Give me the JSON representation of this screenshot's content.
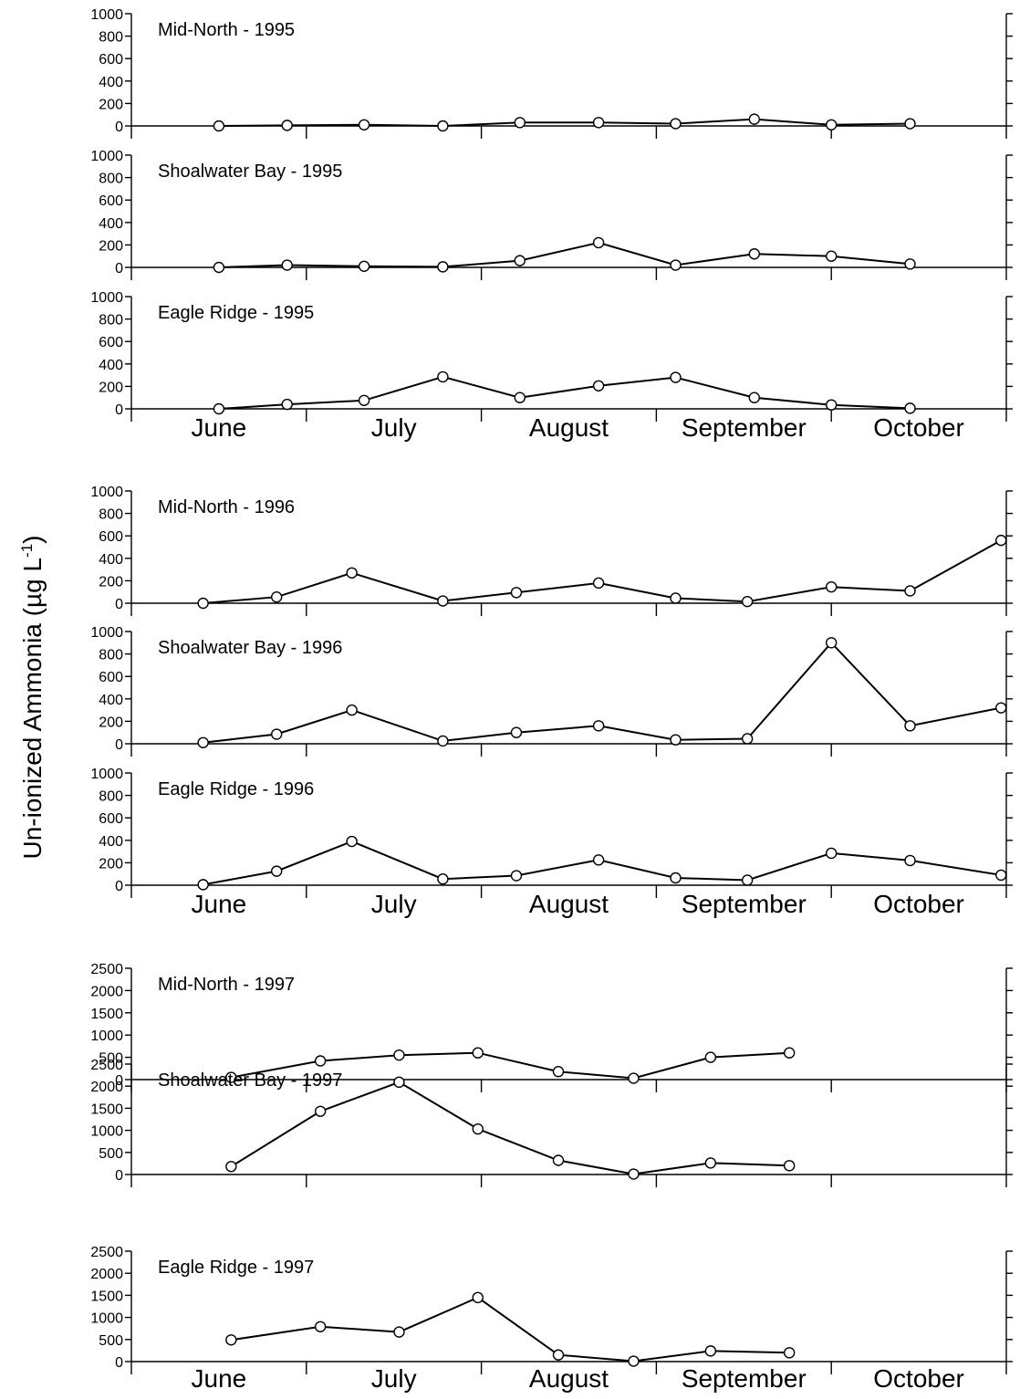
{
  "y_axis_label": {
    "main": "Un-ionized Ammonia (µg L",
    "exponent": "-1",
    "close": ")"
  },
  "chart_data": [
    {
      "type": "line",
      "year": "1995",
      "months": [
        "June",
        "July",
        "August",
        "September",
        "October"
      ],
      "x_unit": "month index (0 = start of June, 5 = end of October)",
      "xlim": [
        0,
        5
      ],
      "ylim": [
        0,
        1000
      ],
      "yticks": [
        0,
        200,
        400,
        600,
        800,
        1000
      ],
      "panels": [
        {
          "title": "Mid-North - 1995",
          "x": [
            0.5,
            0.89,
            1.33,
            1.78,
            2.22,
            2.67,
            3.11,
            3.56,
            4.0,
            4.45
          ],
          "values": [
            0,
            5,
            10,
            0,
            30,
            30,
            20,
            60,
            10,
            20
          ]
        },
        {
          "title": "Shoalwater Bay - 1995",
          "x": [
            0.5,
            0.89,
            1.33,
            1.78,
            2.22,
            2.67,
            3.11,
            3.56,
            4.0,
            4.45
          ],
          "values": [
            0,
            20,
            10,
            5,
            60,
            220,
            20,
            120,
            100,
            30
          ]
        },
        {
          "title": "Eagle Ridge - 1995",
          "x": [
            0.5,
            0.89,
            1.33,
            1.78,
            2.22,
            2.67,
            3.11,
            3.56,
            4.0,
            4.45
          ],
          "values": [
            0,
            40,
            75,
            285,
            100,
            205,
            280,
            100,
            35,
            5
          ]
        }
      ]
    },
    {
      "type": "line",
      "year": "1996",
      "months": [
        "June",
        "July",
        "August",
        "September",
        "October"
      ],
      "x_unit": "month index (0 = start of June, 5 = end of October)",
      "xlim": [
        0,
        5
      ],
      "ylim": [
        0,
        1000
      ],
      "yticks": [
        0,
        200,
        400,
        600,
        800,
        1000
      ],
      "panels": [
        {
          "title": "Mid-North - 1996",
          "x": [
            0.41,
            0.83,
            1.26,
            1.78,
            2.2,
            2.67,
            3.11,
            3.52,
            4.0,
            4.45,
            4.97
          ],
          "values": [
            0,
            55,
            270,
            20,
            95,
            180,
            45,
            15,
            145,
            110,
            560
          ]
        },
        {
          "title": "Shoalwater Bay - 1996",
          "x": [
            0.41,
            0.83,
            1.26,
            1.78,
            2.2,
            2.67,
            3.11,
            3.52,
            4.0,
            4.45,
            4.97
          ],
          "values": [
            10,
            85,
            300,
            25,
            100,
            160,
            35,
            45,
            900,
            160,
            320
          ]
        },
        {
          "title": "Eagle Ridge - 1996",
          "x": [
            0.41,
            0.83,
            1.26,
            1.78,
            2.2,
            2.67,
            3.11,
            3.52,
            4.0,
            4.45,
            4.97
          ],
          "values": [
            5,
            125,
            390,
            55,
            85,
            225,
            65,
            45,
            285,
            220,
            90
          ]
        }
      ]
    },
    {
      "type": "line",
      "year": "1997",
      "months": [
        "June",
        "July",
        "August",
        "September",
        "October"
      ],
      "x_unit": "month index (0 = start of June, 5 = end of October)",
      "xlim": [
        0,
        5
      ],
      "ylim": [
        0,
        2500
      ],
      "yticks": [
        0,
        500,
        1000,
        1500,
        2000,
        2500
      ],
      "panels": [
        {
          "title": "Mid-North - 1997",
          "x": [
            0.57,
            1.08,
            1.53,
            1.98,
            2.44,
            2.87,
            3.31,
            3.76
          ],
          "values": [
            50,
            420,
            550,
            600,
            180,
            30,
            500,
            600
          ]
        },
        {
          "title": "Shoalwater Bay - 1997",
          "x": [
            0.57,
            1.08,
            1.53,
            1.98,
            2.44,
            2.87,
            3.31,
            3.76
          ],
          "values": [
            180,
            1430,
            2090,
            1030,
            320,
            10,
            260,
            200
          ]
        },
        {
          "title": "Eagle Ridge - 1997",
          "x": [
            0.57,
            1.08,
            1.53,
            1.98,
            2.44,
            2.87,
            3.31,
            3.76
          ],
          "values": [
            490,
            790,
            670,
            1450,
            150,
            10,
            240,
            200
          ]
        }
      ]
    }
  ]
}
